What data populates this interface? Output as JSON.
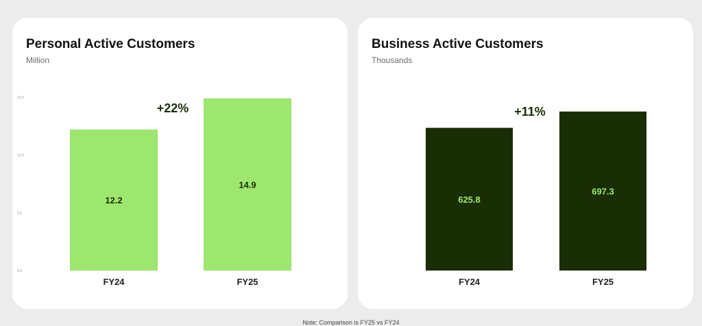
{
  "chart_data": [
    {
      "type": "bar",
      "title": "Personal Active Customers",
      "subtitle": "Million",
      "categories": [
        "FY24",
        "FY25"
      ],
      "values": [
        12.2,
        14.9
      ],
      "data_labels": [
        "12.2",
        "14.9"
      ],
      "ylim": [
        0,
        15
      ],
      "y_ticks": [
        0,
        5,
        10,
        15
      ],
      "y_tick_labels": [
        "0.0",
        "5.0",
        "10.0",
        "15.0"
      ],
      "annotation": "+22%",
      "bar_color": "#9ee76e",
      "label_color": "#1a2e05"
    },
    {
      "type": "bar",
      "title": "Business Active Customers",
      "subtitle": "Thousands",
      "categories": [
        "FY24",
        "FY25"
      ],
      "values": [
        625.8,
        697.3
      ],
      "data_labels": [
        "625.8",
        "697.3"
      ],
      "ylim": [
        0,
        775
      ],
      "annotation": "+11%",
      "bar_color": "#1a2e05",
      "label_color": "#9ee76e"
    }
  ],
  "footnote": "Note: Comparison is FY25 vs FY24"
}
